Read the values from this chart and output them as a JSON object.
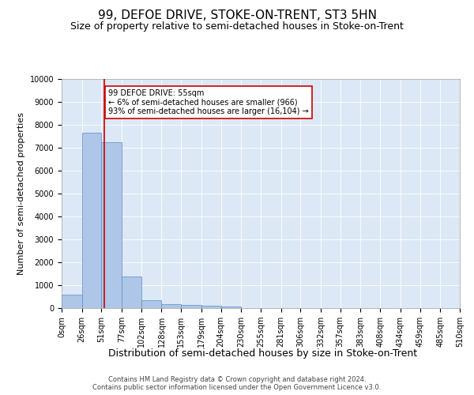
{
  "title": "99, DEFOE DRIVE, STOKE-ON-TRENT, ST3 5HN",
  "subtitle": "Size of property relative to semi-detached houses in Stoke-on-Trent",
  "xlabel": "Distribution of semi-detached houses by size in Stoke-on-Trent",
  "ylabel": "Number of semi-detached properties",
  "bin_edges": [
    0,
    26,
    51,
    77,
    102,
    128,
    153,
    179,
    204,
    230,
    255,
    281,
    306,
    332,
    357,
    383,
    408,
    434,
    459,
    485,
    510
  ],
  "bar_heights": [
    600,
    7650,
    7250,
    1380,
    340,
    160,
    130,
    100,
    80,
    0,
    0,
    0,
    0,
    0,
    0,
    0,
    0,
    0,
    0,
    0
  ],
  "bar_color": "#aec6e8",
  "bar_edge_color": "#5a8fc0",
  "property_sqm": 55,
  "property_line_color": "#cc0000",
  "annotation_text": "99 DEFOE DRIVE: 55sqm\n← 6% of semi-detached houses are smaller (966)\n93% of semi-detached houses are larger (16,104) →",
  "annotation_box_color": "#cc0000",
  "ylim": [
    0,
    10000
  ],
  "yticks": [
    0,
    1000,
    2000,
    3000,
    4000,
    5000,
    6000,
    7000,
    8000,
    9000,
    10000
  ],
  "background_color": "#dce8f5",
  "footer_line1": "Contains HM Land Registry data © Crown copyright and database right 2024.",
  "footer_line2": "Contains public sector information licensed under the Open Government Licence v3.0.",
  "title_fontsize": 11,
  "subtitle_fontsize": 9,
  "tick_label_fontsize": 7,
  "ylabel_fontsize": 8,
  "xlabel_fontsize": 9,
  "annotation_fontsize": 7,
  "footer_fontsize": 6
}
